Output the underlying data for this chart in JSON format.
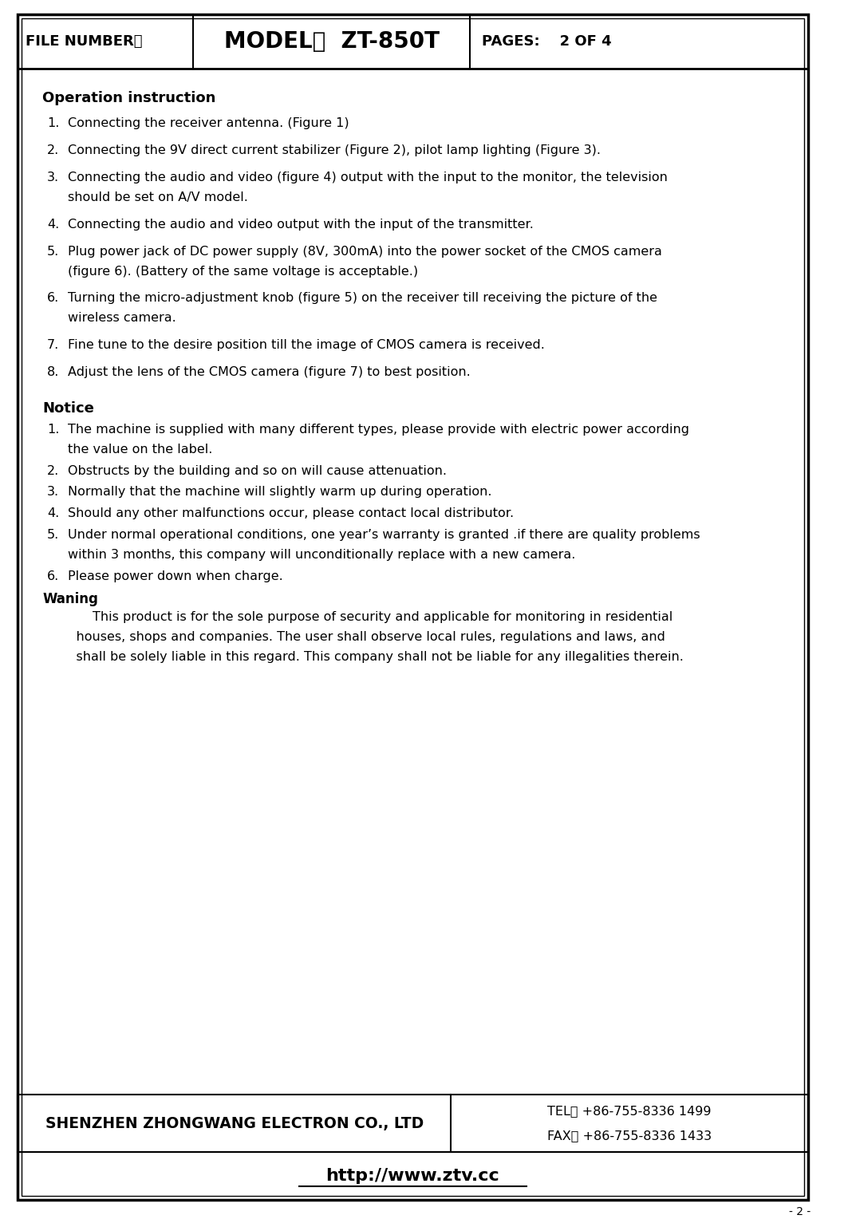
{
  "title_col1": "FILE NUMBER：",
  "title_col2": "MODEL：  ZT-850T",
  "title_col3": "PAGES:    2 OF 4",
  "section1_title": "Operation instruction",
  "section2_title": "Notice",
  "waning_title": "Waning",
  "waning_lines": [
    "        This product is for the sole purpose of security and applicable for monitoring in residential",
    "    houses, shops and companies. The user shall observe local rules, regulations and laws, and",
    "    shall be solely liable in this regard. This company shall not be liable for any illegalities therein."
  ],
  "company": "SHENZHEN ZHONGWANG ELECTRON CO., LTD",
  "tel": "TEL： +86-755-8336 1499",
  "fax": "FAX： +86-755-8336 1433",
  "website": "http://www.ztv.cc",
  "page_num": "- 2 -",
  "bg_color": "#ffffff",
  "text_color": "#000000",
  "op_items": [
    {
      "num": "1.",
      "line1": "Connecting the receiver antenna. (Figure 1)",
      "line2": ""
    },
    {
      "num": "2.",
      "line1": "Connecting the 9V direct current stabilizer (Figure 2), pilot lamp lighting (Figure 3).",
      "line2": ""
    },
    {
      "num": "3.",
      "line1": "Connecting the audio and video (figure 4) output with the input to the monitor, the television",
      "line2": "should be set on A/V model."
    },
    {
      "num": "4.",
      "line1": "Connecting the audio and video output with the input of the transmitter.",
      "line2": ""
    },
    {
      "num": "5.",
      "line1": "Plug power jack of DC power supply (8V, 300mA) into the power socket of the CMOS camera",
      "line2": "(figure 6). (Battery of the same voltage is acceptable.)"
    },
    {
      "num": "6.",
      "line1": "Turning the micro-adjustment knob (figure 5) on the receiver till receiving the picture of the",
      "line2": "wireless camera."
    },
    {
      "num": "7.",
      "line1": "Fine tune to the desire position till the image of CMOS camera is received.",
      "line2": ""
    },
    {
      "num": "8.",
      "line1": "Adjust the lens of the CMOS camera (figure 7) to best position.",
      "line2": ""
    }
  ],
  "notice_items": [
    {
      "num": "1.",
      "line1": "The machine is supplied with many different types, please provide with electric power according",
      "line2": "the value on the label."
    },
    {
      "num": "2.",
      "line1": "Obstructs by the building and so on will cause attenuation.",
      "line2": ""
    },
    {
      "num": "3.",
      "line1": "Normally that the machine will slightly warm up during operation.",
      "line2": ""
    },
    {
      "num": "4.",
      "line1": "Should any other malfunctions occur, please contact local distributor.",
      "line2": ""
    },
    {
      "num": "5.",
      "line1": "Under normal operational conditions, one year’s warranty is granted .if there are quality problems",
      "line2": "within 3 months, this company will unconditionally replace with a new camera."
    },
    {
      "num": "6.",
      "line1": "Please power down when charge.",
      "line2": ""
    }
  ]
}
